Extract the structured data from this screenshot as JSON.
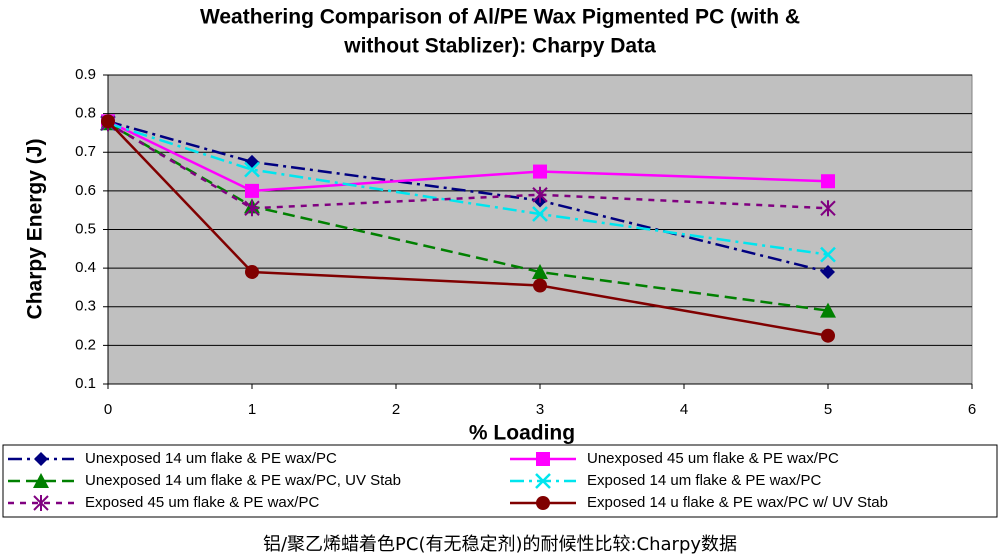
{
  "chart_data": {
    "type": "line",
    "title": [
      "Weathering Comparison of Al/PE Wax Pigmented PC (with &",
      "without Stablizer):  Charpy Data"
    ],
    "x_label": "% Loading",
    "y_label": "Charpy Energy (J)",
    "x": [
      0,
      1,
      3,
      5
    ],
    "xlim": [
      0,
      6
    ],
    "xticks": [
      0,
      1,
      2,
      3,
      4,
      5,
      6
    ],
    "ylim": [
      0.1,
      0.9
    ],
    "yticks": [
      0.1,
      0.2,
      0.3,
      0.4,
      0.5,
      0.6,
      0.7,
      0.8,
      0.9
    ],
    "grid": true,
    "background": "#c0c0c0",
    "series": [
      {
        "name": "Unexposed 14 um flake & PE wax/PC",
        "color": "#000080",
        "dash": "14 5 3 5",
        "marker": "diamond",
        "values": [
          0.78,
          0.675,
          0.575,
          0.39
        ]
      },
      {
        "name": "Unexposed 45 um flake & PE wax/PC",
        "color": "#ff00ff",
        "dash": "none",
        "marker": "square",
        "values": [
          0.78,
          0.6,
          0.65,
          0.625
        ]
      },
      {
        "name": "Unexposed 14 um flake & PE wax/PC, UV Stab",
        "color": "#008000",
        "dash": "12 6",
        "marker": "triangle",
        "values": [
          0.775,
          0.56,
          0.39,
          0.29
        ]
      },
      {
        "name": "Exposed 14 um flake & PE wax/PC",
        "color": "#00e5ee",
        "dash": "14 5 3 5",
        "marker": "x",
        "values": [
          0.775,
          0.655,
          0.54,
          0.435
        ]
      },
      {
        "name": "Exposed 45 um flake & PE wax/PC",
        "color": "#800080",
        "dash": "6 6",
        "marker": "star",
        "values": [
          0.775,
          0.555,
          0.59,
          0.555
        ]
      },
      {
        "name": "Exposed 14 u flake & PE wax/PC w/ UV Stab",
        "color": "#800000",
        "dash": "none",
        "marker": "circle",
        "values": [
          0.78,
          0.39,
          0.355,
          0.225
        ]
      }
    ]
  },
  "caption": "铝/聚乙烯蜡着色PC(有无稳定剂)的耐候性比较:Charpy数据"
}
